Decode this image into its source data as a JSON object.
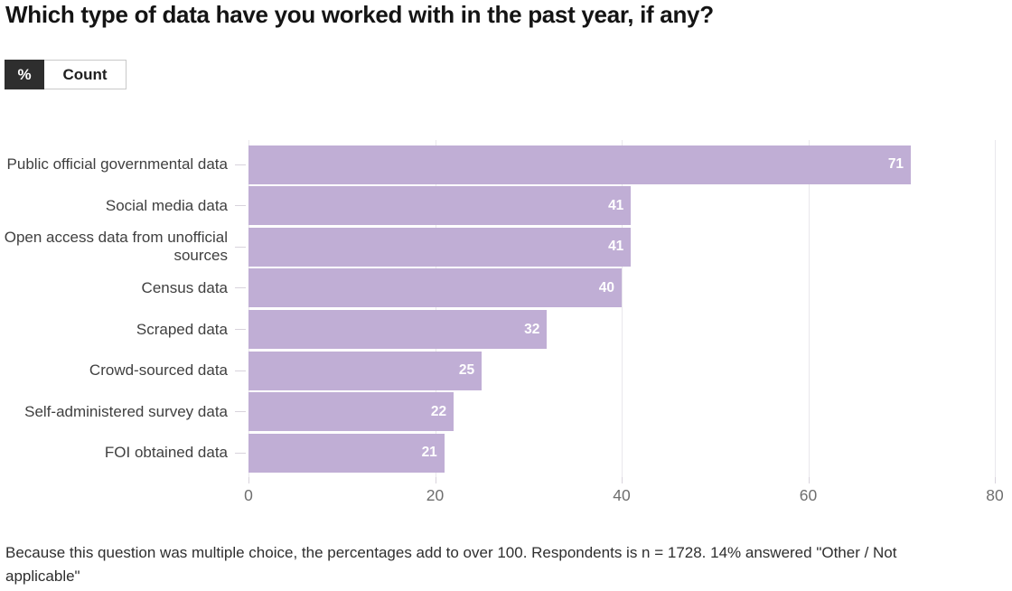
{
  "header": {
    "title": "Which type of data have you worked with in the past year, if any?"
  },
  "toggle": {
    "options": [
      {
        "label": "%",
        "active": true
      },
      {
        "label": "Count",
        "active": false
      }
    ]
  },
  "chart_data": {
    "type": "bar",
    "orientation": "horizontal",
    "title": "Which type of data have you worked with in the past year, if any?",
    "categories": [
      "Public official governmental data",
      "Social media data",
      "Open access data from unofficial sources",
      "Census data",
      "Scraped data",
      "Crowd-sourced data",
      "Self-administered survey data",
      "FOI obtained data"
    ],
    "values": [
      71,
      41,
      41,
      40,
      32,
      25,
      22,
      21
    ],
    "value_unit": "%",
    "xlabel": "",
    "ylabel": "",
    "xlim": [
      0,
      80
    ],
    "xticks": [
      0,
      20,
      40,
      60,
      80
    ],
    "grid": true,
    "legend_position": "none",
    "bar_color": "#c0aed5",
    "value_label_color": "#ffffff"
  },
  "footer": {
    "note": "Because this question was multiple choice, the percentages add to over 100. Respondents is n = 1728. 14% answered \"Other / Not applicable\""
  }
}
